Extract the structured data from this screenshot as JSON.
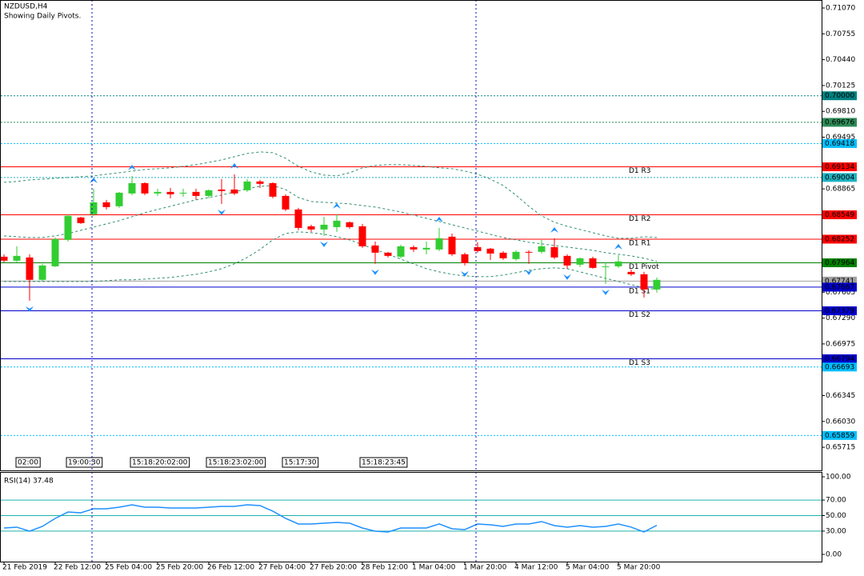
{
  "chart_data": [
    {
      "type": "candlestick",
      "title": "NZDUSD,H4",
      "subtitle": "Showing Daily Pivots.",
      "categories": [
        "21 Feb 2019",
        null,
        null,
        null,
        "22 Feb 12:00",
        null,
        null,
        null,
        "25 Feb 04:00",
        null,
        null,
        null,
        "25 Feb 20:00",
        null,
        null,
        null,
        "26 Feb 12:00",
        null,
        null,
        null,
        "27 Feb 04:00",
        null,
        null,
        null,
        "27 Feb 20:00",
        null,
        null,
        null,
        "28 Feb 12:00",
        null,
        null,
        null,
        "1 Mar 04:00",
        null,
        null,
        null,
        "1 Mar 20:00",
        null,
        null,
        null,
        "4 Mar 12:00",
        null,
        null,
        null,
        "5 Mar 04:00",
        null,
        null,
        null,
        "5 Mar 20:00",
        null,
        null,
        null
      ],
      "open": [
        0.68038,
        0.6799,
        0.68029,
        0.67756,
        0.67921,
        0.68243,
        0.68516,
        0.68555,
        0.68701,
        0.68653,
        0.68809,
        0.68935,
        0.68809,
        0.68828,
        0.68809,
        0.68828,
        0.68779,
        0.68857,
        0.68857,
        0.68848,
        0.68955,
        0.68935,
        0.68779,
        0.68614,
        0.68409,
        0.6837,
        0.68399,
        0.68458,
        0.68409,
        0.68175,
        0.68087,
        0.68038,
        0.68155,
        0.68126,
        0.68126,
        0.68282,
        0.68068,
        0.68155,
        0.68136,
        0.68087,
        0.68009,
        0.68097,
        0.68097,
        0.68155,
        0.68048,
        0.67941,
        0.68019,
        0.67912,
        0.67921,
        0.67853,
        0.67824,
        0.67639
      ],
      "high": [
        0.68068,
        0.68165,
        0.68068,
        0.67951,
        0.68272,
        0.68555,
        0.68526,
        0.68867,
        0.68731,
        0.68828,
        0.69023,
        0.68945,
        0.68867,
        0.68877,
        0.68867,
        0.68867,
        0.68857,
        0.68984,
        0.69043,
        0.68984,
        0.68974,
        0.68945,
        0.68799,
        0.68633,
        0.68428,
        0.68526,
        0.68555,
        0.68467,
        0.68438,
        0.68224,
        0.68097,
        0.68185,
        0.68175,
        0.68224,
        0.68389,
        0.68321,
        0.68087,
        0.68214,
        0.68146,
        0.68107,
        0.68116,
        0.68116,
        0.68243,
        0.68263,
        0.68068,
        0.68029,
        0.68038,
        0.6797,
        0.68058,
        0.67882,
        0.67853,
        0.67785
      ],
      "low": [
        0.6797,
        0.6797,
        0.67502,
        0.67736,
        0.67912,
        0.68224,
        0.68438,
        0.68536,
        0.68614,
        0.68633,
        0.68789,
        0.68789,
        0.68779,
        0.6875,
        0.6877,
        0.68731,
        0.6875,
        0.68682,
        0.68789,
        0.68828,
        0.68877,
        0.6875,
        0.68594,
        0.6836,
        0.68341,
        0.68292,
        0.68341,
        0.6838,
        0.68146,
        0.67951,
        0.68029,
        0.68019,
        0.68097,
        0.68068,
        0.68107,
        0.68048,
        0.67931,
        0.68087,
        0.67999,
        0.67999,
        0.6799,
        0.67951,
        0.68077,
        0.68009,
        0.67892,
        0.67912,
        0.67892,
        0.67707,
        0.67902,
        0.67804,
        0.67541,
        0.676
      ],
      "close": [
        0.6799,
        0.68048,
        0.67756,
        0.67931,
        0.68253,
        0.68536,
        0.68448,
        0.68701,
        0.68643,
        0.68818,
        0.68935,
        0.68809,
        0.68828,
        0.68799,
        0.68818,
        0.68779,
        0.68848,
        0.68838,
        0.68809,
        0.68955,
        0.68926,
        0.6877,
        0.68614,
        0.68389,
        0.6837,
        0.68428,
        0.68477,
        0.68399,
        0.68165,
        0.68087,
        0.68048,
        0.68165,
        0.68126,
        0.68146,
        0.68263,
        0.68068,
        0.6796,
        0.68107,
        0.68077,
        0.68019,
        0.68097,
        0.68087,
        0.68165,
        0.68029,
        0.67931,
        0.68019,
        0.67902,
        0.67921,
        0.6798,
        0.67824,
        0.67639,
        0.67756
      ],
      "up_color": "#32cd32",
      "down_color": "#ff0000",
      "series": [
        {
          "color": "#2f8f6f",
          "style": "dashed",
          "values": [
            0.68945,
            0.68955,
            0.68974,
            0.68984,
            0.68994,
            0.69004,
            0.69013,
            0.69023,
            0.69043,
            0.69062,
            0.69082,
            0.69101,
            0.69111,
            0.69121,
            0.6914,
            0.6916,
            0.69189,
            0.69218,
            0.69257,
            0.69296,
            0.69316,
            0.69306,
            0.69238,
            0.6914,
            0.69072,
            0.69033,
            0.69023,
            0.69062,
            0.69121,
            0.6915,
            0.6916,
            0.6916,
            0.6915,
            0.6914,
            0.69121,
            0.69111,
            0.69082,
            0.69043,
            0.68984,
            0.68906,
            0.68789,
            0.68653,
            0.68536,
            0.68458,
            0.68409,
            0.6837,
            0.68331,
            0.68292,
            0.68263,
            0.68263,
            0.68282,
            0.68272
          ]
        },
        {
          "color": "#2f8f6f",
          "style": "dashed",
          "values": [
            0.68292,
            0.68282,
            0.68272,
            0.68272,
            0.68292,
            0.68321,
            0.6836,
            0.68399,
            0.68438,
            0.68477,
            0.68526,
            0.68575,
            0.68614,
            0.68653,
            0.68692,
            0.68731,
            0.6876,
            0.68789,
            0.68828,
            0.68867,
            0.68896,
            0.68906,
            0.68857,
            0.6876,
            0.68711,
            0.68701,
            0.68692,
            0.68682,
            0.68662,
            0.68643,
            0.68614,
            0.68584,
            0.68545,
            0.68506,
            0.68467,
            0.68428,
            0.68389,
            0.6835,
            0.68311,
            0.68272,
            0.68243,
            0.68214,
            0.68194,
            0.68175,
            0.68155,
            0.68136,
            0.68116,
            0.68087,
            0.68068,
            0.68048,
            0.68019,
            0.6798
          ]
        },
        {
          "color": "#2f8f6f",
          "style": "dashed",
          "values": [
            0.67736,
            0.67736,
            0.67736,
            0.67736,
            0.67736,
            0.67736,
            0.67736,
            0.67736,
            0.67746,
            0.67756,
            0.67756,
            0.67765,
            0.67775,
            0.67785,
            0.67804,
            0.67824,
            0.67853,
            0.67892,
            0.67951,
            0.68029,
            0.68126,
            0.68243,
            0.68321,
            0.68341,
            0.68331,
            0.68311,
            0.68282,
            0.68243,
            0.68185,
            0.68126,
            0.68068,
            0.68009,
            0.67951,
            0.67892,
            0.67853,
            0.67824,
            0.67804,
            0.67795,
            0.67795,
            0.67814,
            0.67843,
            0.67873,
            0.67892,
            0.67902,
            0.67892,
            0.67853,
            0.67814,
            0.67775,
            0.67736,
            0.67697,
            0.67658,
            0.67639
          ]
        }
      ],
      "fractals_color": "#1e90ff",
      "fractals_up": [
        null,
        null,
        null,
        null,
        null,
        null,
        null,
        0.68867,
        null,
        null,
        0.69023,
        null,
        null,
        null,
        null,
        null,
        null,
        null,
        0.69043,
        null,
        null,
        null,
        null,
        null,
        null,
        null,
        0.68555,
        null,
        null,
        null,
        null,
        null,
        null,
        null,
        0.68389,
        null,
        null,
        null,
        null,
        null,
        null,
        null,
        null,
        0.68263,
        null,
        null,
        null,
        null,
        0.68058,
        null,
        null,
        null
      ],
      "fractals_down": [
        null,
        null,
        0.67502,
        null,
        null,
        null,
        null,
        null,
        null,
        null,
        null,
        null,
        null,
        null,
        null,
        null,
        null,
        0.68682,
        null,
        null,
        null,
        null,
        null,
        null,
        null,
        0.68292,
        null,
        null,
        null,
        0.67951,
        null,
        null,
        null,
        null,
        null,
        null,
        0.67931,
        null,
        null,
        null,
        null,
        0.67951,
        null,
        null,
        0.67892,
        null,
        null,
        0.67707,
        null,
        null,
        null,
        null
      ],
      "ylim": [
        0.65433,
        0.71148
      ],
      "yticks": [
        {
          "value": 0.7107,
          "label": "0.71070"
        },
        0.70755,
        {
          "value": 0.7044,
          "label": "0.70440"
        },
        0.70125,
        {
          "value": 0.6981,
          "label": "0.69810"
        },
        0.69495,
        0.68865,
        0.67605,
        {
          "value": 0.6729,
          "label": "0.67290"
        },
        0.66975,
        0.66345,
        {
          "value": 0.6603,
          "label": "0.66030"
        },
        0.65715
      ],
      "levels": [
        {
          "value": 0.7,
          "label": "0.70000",
          "color": "#008080",
          "style": "dotted"
        },
        {
          "value": 0.69676,
          "color": "#2e8b57",
          "style": "dotted"
        },
        {
          "value": 0.69418,
          "color": "#00bfff",
          "style": "dotted"
        },
        {
          "value": 0.69134,
          "color": "#ff0000",
          "style": "solid",
          "name": "D1 R3"
        },
        {
          "value": 0.69004,
          "color": "#20b2c0",
          "style": "dotted"
        },
        {
          "value": 0.68549,
          "color": "#ff0000",
          "style": "solid",
          "name": "D1 R2"
        },
        {
          "value": 0.68252,
          "color": "#ff0000",
          "style": "solid",
          "name": "D1 R1"
        },
        {
          "value": 0.67964,
          "color": "#008000",
          "style": "solid",
          "name": "D1 Pivot"
        },
        {
          "value": 0.67741,
          "color": "#a0a0a0",
          "style": "solid"
        },
        {
          "value": 0.67667,
          "color": "#0000cd",
          "style": "solid",
          "name": "D1 S1"
        },
        {
          "value": 0.67379,
          "color": "#0000cd",
          "style": "solid",
          "name": "D1 S2"
        },
        {
          "value": 0.66794,
          "color": "#0000cd",
          "style": "solid",
          "name": "D1 S3"
        },
        {
          "value": 0.66693,
          "color": "#00bfff",
          "style": "dotted"
        },
        {
          "value": 0.65859,
          "color": "#00bfff",
          "style": "dotted"
        }
      ],
      "annotations": [
        "02:00",
        "19:00:30",
        "15:18:20:02:00",
        "15:18:23:02:00",
        "15:17:30",
        "15:18:23:45"
      ]
    },
    {
      "type": "line",
      "title": "RSI(14) 37.48",
      "series": [
        {
          "color": "#1e90ff",
          "values": [
            34.0,
            35.1,
            29.9,
            36.1,
            46.4,
            54.6,
            53.6,
            58.8,
            58.8,
            60.8,
            63.9,
            60.8,
            60.8,
            59.8,
            59.8,
            59.8,
            60.8,
            61.9,
            61.9,
            63.9,
            62.9,
            55.7,
            46.4,
            39.2,
            39.2,
            40.2,
            41.2,
            40.2,
            34.0,
            29.9,
            28.9,
            34.0,
            34.0,
            34.0,
            39.2,
            33.0,
            32.0,
            39.2,
            38.1,
            36.1,
            39.2,
            39.2,
            42.3,
            37.1,
            35.1,
            37.1,
            35.1,
            36.1,
            39.2,
            35.1,
            28.9,
            37.48
          ]
        }
      ],
      "ylim": [
        -9.3,
        106.2
      ],
      "yticks": [
        {
          "value": 100,
          "label": "100.00"
        },
        {
          "value": 70,
          "label": "70.00"
        },
        {
          "value": 50,
          "label": "50.00"
        },
        {
          "value": 30,
          "label": "30.00"
        },
        {
          "value": 0,
          "label": "0.00"
        }
      ],
      "levels": [
        70,
        50,
        30
      ],
      "level_color": "#20b2aa"
    }
  ]
}
